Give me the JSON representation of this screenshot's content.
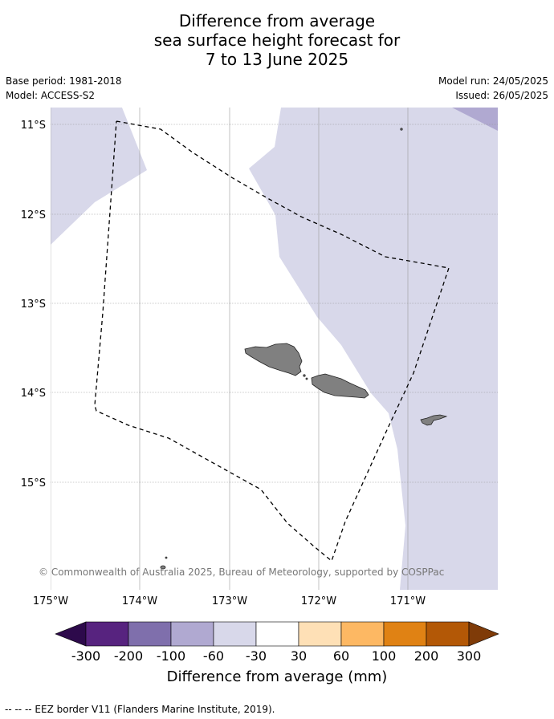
{
  "title": {
    "line1": "Difference from average",
    "line2": "sea surface height forecast for",
    "line3": "7 to 13 June 2025"
  },
  "meta": {
    "base_period": "Base period: 1981-2018",
    "model": "Model: ACCESS-S2",
    "model_run": "Model run: 24/05/2025",
    "issued": "Issued: 26/05/2025"
  },
  "map": {
    "lat_labels": [
      "11°S",
      "12°S",
      "13°S",
      "14°S",
      "15°S"
    ],
    "lon_labels": [
      "175°W",
      "174°W",
      "173°W",
      "172°W",
      "171°W"
    ],
    "credit": "© Commonwealth of Australia 2025, Bureau of Meteorology, supported by COSPPac",
    "colors": {
      "light_anomaly": "#d8d8ea",
      "medium_anomaly": "#b0a9d1",
      "land": "#808080",
      "gridline": "#999999"
    }
  },
  "colorbar": {
    "title": "Difference from average (mm)",
    "ticks": [
      "-300",
      "-200",
      "-100",
      "-60",
      "-30",
      "30",
      "60",
      "100",
      "200",
      "300"
    ],
    "colors": [
      "#2d0a4b",
      "#57237f",
      "#7f6fac",
      "#b0a9d1",
      "#d8d8ea",
      "#ffffff",
      "#fee0b6",
      "#fdb863",
      "#e08214",
      "#b35806",
      "#7f3b08"
    ]
  },
  "footer": {
    "legend": "-- -- -- EEZ border V11 (Flanders Marine Institute, 2019)."
  }
}
